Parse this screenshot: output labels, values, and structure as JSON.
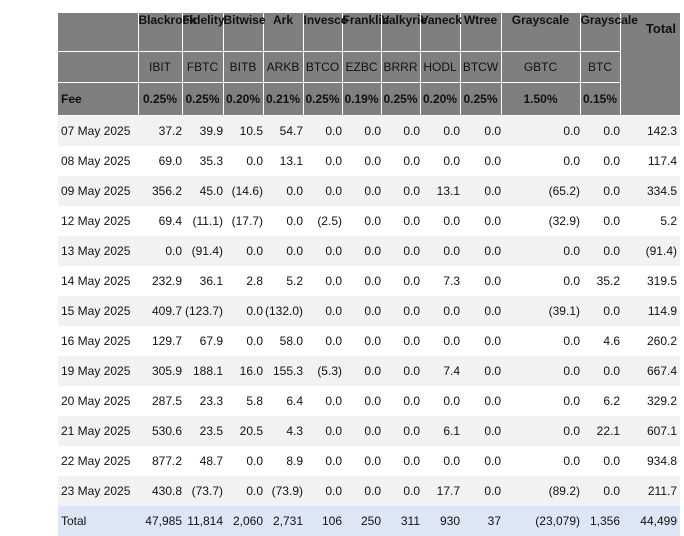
{
  "issuers": [
    "Blackrock",
    "Fidelity",
    "Bitwise",
    "Ark",
    "Invesco",
    "Franklin",
    "Valkyrie",
    "Vaneck",
    "Wtree",
    "Grayscale",
    "Grayscale"
  ],
  "tickers": [
    "IBIT",
    "FBTC",
    "BITB",
    "ARKB",
    "BTCO",
    "EZBC",
    "BRRR",
    "HODL",
    "BTCW",
    "GBTC",
    "BTC"
  ],
  "total_header": "Total",
  "fee_label": "Fee",
  "fees": [
    "0.25%",
    "0.25%",
    "0.20%",
    "0.21%",
    "0.25%",
    "0.19%",
    "0.25%",
    "0.20%",
    "0.25%",
    "1.50%",
    "0.15%"
  ],
  "rows": [
    {
      "date": "07 May 2025",
      "values": [
        "37.2",
        "39.9",
        "10.5",
        "54.7",
        "0.0",
        "0.0",
        "0.0",
        "0.0",
        "0.0",
        "0.0",
        "0.0"
      ],
      "total": "142.3"
    },
    {
      "date": "08 May 2025",
      "values": [
        "69.0",
        "35.3",
        "0.0",
        "13.1",
        "0.0",
        "0.0",
        "0.0",
        "0.0",
        "0.0",
        "0.0",
        "0.0"
      ],
      "total": "117.4"
    },
    {
      "date": "09 May 2025",
      "values": [
        "356.2",
        "45.0",
        "(14.6)",
        "0.0",
        "0.0",
        "0.0",
        "0.0",
        "13.1",
        "0.0",
        "(65.2)",
        "0.0"
      ],
      "total": "334.5"
    },
    {
      "date": "12 May 2025",
      "values": [
        "69.4",
        "(11.1)",
        "(17.7)",
        "0.0",
        "(2.5)",
        "0.0",
        "0.0",
        "0.0",
        "0.0",
        "(32.9)",
        "0.0"
      ],
      "total": "5.2"
    },
    {
      "date": "13 May 2025",
      "values": [
        "0.0",
        "(91.4)",
        "0.0",
        "0.0",
        "0.0",
        "0.0",
        "0.0",
        "0.0",
        "0.0",
        "0.0",
        "0.0"
      ],
      "total": "(91.4)"
    },
    {
      "date": "14 May 2025",
      "values": [
        "232.9",
        "36.1",
        "2.8",
        "5.2",
        "0.0",
        "0.0",
        "0.0",
        "7.3",
        "0.0",
        "0.0",
        "35.2"
      ],
      "total": "319.5"
    },
    {
      "date": "15 May 2025",
      "values": [
        "409.7",
        "(123.7)",
        "0.0",
        "(132.0)",
        "0.0",
        "0.0",
        "0.0",
        "0.0",
        "0.0",
        "(39.1)",
        "0.0"
      ],
      "total": "114.9"
    },
    {
      "date": "16 May 2025",
      "values": [
        "129.7",
        "67.9",
        "0.0",
        "58.0",
        "0.0",
        "0.0",
        "0.0",
        "0.0",
        "0.0",
        "0.0",
        "4.6"
      ],
      "total": "260.2"
    },
    {
      "date": "19 May 2025",
      "values": [
        "305.9",
        "188.1",
        "16.0",
        "155.3",
        "(5.3)",
        "0.0",
        "0.0",
        "7.4",
        "0.0",
        "0.0",
        "0.0"
      ],
      "total": "667.4"
    },
    {
      "date": "20 May 2025",
      "values": [
        "287.5",
        "23.3",
        "5.8",
        "6.4",
        "0.0",
        "0.0",
        "0.0",
        "0.0",
        "0.0",
        "0.0",
        "6.2"
      ],
      "total": "329.2"
    },
    {
      "date": "21 May 2025",
      "values": [
        "530.6",
        "23.5",
        "20.5",
        "4.3",
        "0.0",
        "0.0",
        "0.0",
        "6.1",
        "0.0",
        "0.0",
        "22.1"
      ],
      "total": "607.1"
    },
    {
      "date": "22 May 2025",
      "values": [
        "877.2",
        "48.7",
        "0.0",
        "8.9",
        "0.0",
        "0.0",
        "0.0",
        "0.0",
        "0.0",
        "0.0",
        "0.0"
      ],
      "total": "934.8"
    },
    {
      "date": "23 May 2025",
      "values": [
        "430.8",
        "(73.7)",
        "0.0",
        "(73.9)",
        "0.0",
        "0.0",
        "0.0",
        "17.7",
        "0.0",
        "(89.2)",
        "0.0"
      ],
      "total": "211.7"
    }
  ],
  "total_row": {
    "label": "Total",
    "values": [
      "47,985",
      "11,814",
      "2,060",
      "2,731",
      "106",
      "250",
      "311",
      "930",
      "37",
      "(23,079)",
      "1,356"
    ],
    "total": "44,499"
  },
  "colors": {
    "header_bg": "#7f7f7f",
    "alt_row_bg": "#f2f2f2",
    "total_row_bg": "#dde6f4",
    "negative": "#d40000"
  }
}
